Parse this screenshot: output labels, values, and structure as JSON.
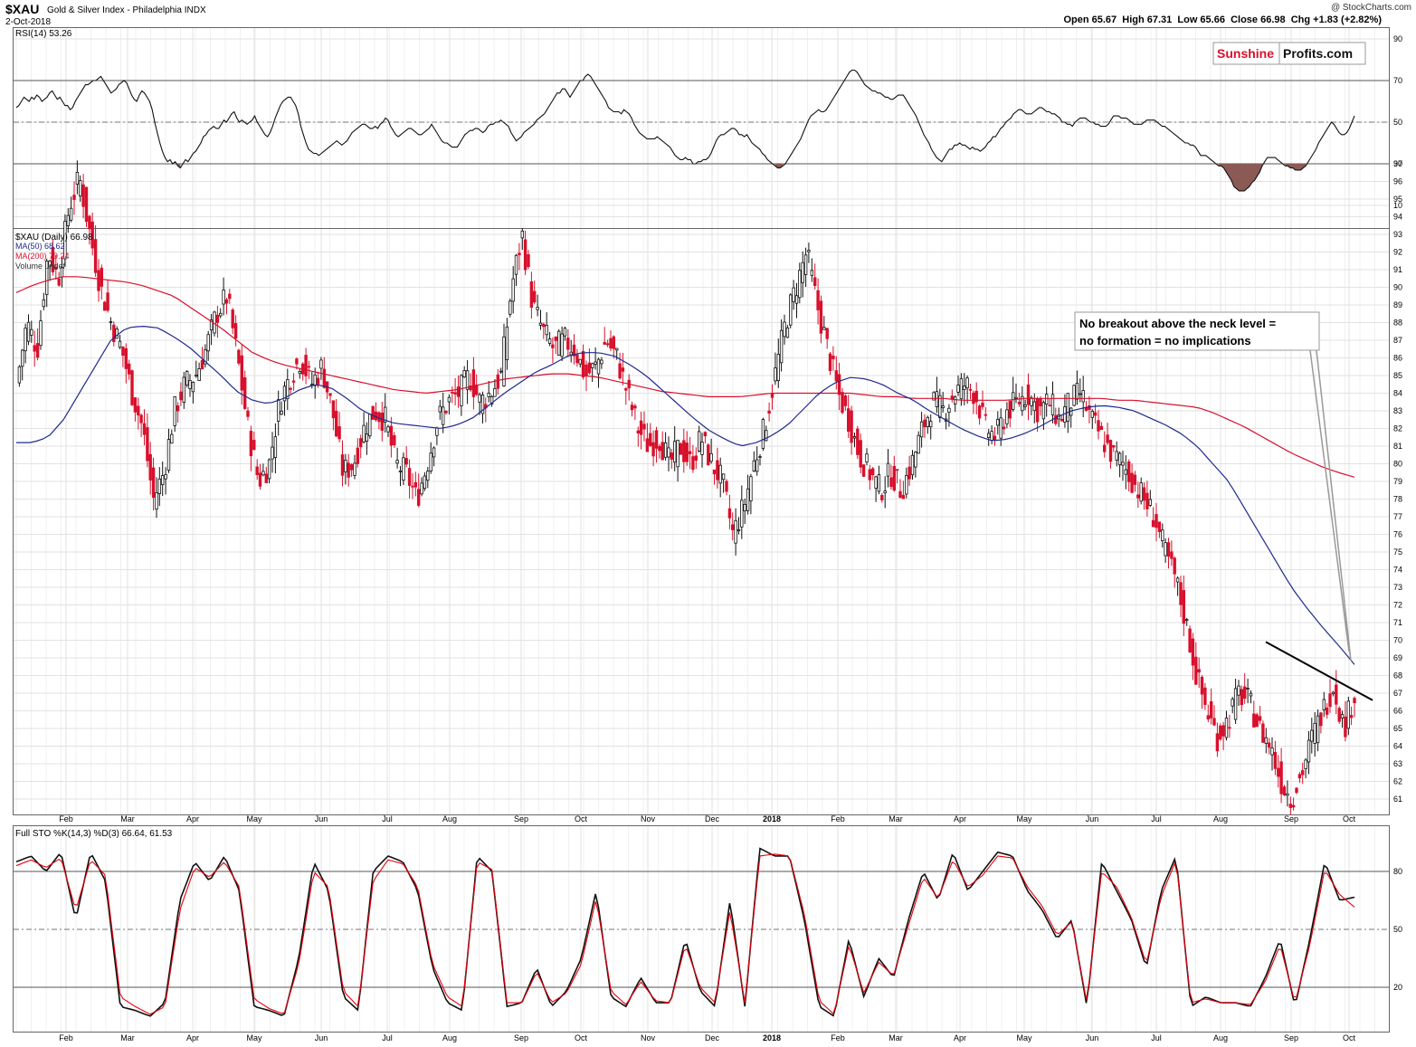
{
  "header": {
    "symbol": "$XAU",
    "name": "Gold & Silver Index - Philadelphia INDX",
    "date": "2-Oct-2018",
    "credit": "@ StockCharts.com",
    "ohlc": "Open 65.67  High 67.31  Low 65.66  Close 66.98  Chg +1.83 (+2.82%)"
  },
  "brand": {
    "part1": "Sunshine",
    "part2": "Profits.com",
    "color1": "#d8102c",
    "color2": "#111111"
  },
  "colors": {
    "up": "#111111",
    "down": "#d8102c",
    "ma50": "#1f2a8c",
    "ma200": "#d8102c",
    "grid": "#e2e2e2",
    "rsi_fill": "#8b5a55",
    "sto_d": "#e8000b"
  },
  "annotation": {
    "line1": "No breakout above the neck level =",
    "line2": "no formation = no implications"
  },
  "chart_data": [
    {
      "type": "line",
      "title": "RSI(14) 53.26",
      "ylim": [
        0,
        100
      ],
      "ticks": [
        10,
        30,
        50,
        70,
        90
      ],
      "reference_lines": [
        30,
        50,
        70
      ],
      "series": [
        {
          "name": "RSI(14)",
          "values": [
            57,
            58,
            60,
            62,
            61,
            60,
            62,
            61,
            63,
            62,
            60,
            61,
            62,
            64,
            65,
            63,
            61,
            62,
            60,
            58,
            58,
            56,
            57,
            60,
            62,
            64,
            66,
            68,
            68,
            69,
            70,
            70,
            71,
            72,
            70,
            68,
            66,
            64,
            65,
            66,
            68,
            69,
            70,
            69,
            66,
            63,
            61,
            60,
            63,
            65,
            64,
            62,
            60,
            56,
            50,
            45,
            40,
            36,
            33,
            31,
            32,
            30,
            31,
            29,
            28,
            30,
            32,
            31,
            33,
            35,
            36,
            38,
            40,
            43,
            44,
            46,
            47,
            48,
            47,
            47,
            49,
            51,
            50,
            52,
            54,
            55,
            52,
            50,
            51,
            50,
            49,
            50,
            51,
            53,
            50,
            48,
            46,
            44,
            43,
            45,
            48,
            52,
            55,
            58,
            60,
            61,
            62,
            62,
            60,
            58,
            54,
            48,
            44,
            40,
            37,
            36,
            35,
            35,
            34,
            35,
            36,
            37,
            38,
            39,
            40,
            41,
            40,
            39,
            40,
            41,
            43,
            45,
            46,
            47,
            48,
            49,
            49,
            48,
            47,
            47,
            48,
            47,
            49,
            50,
            52,
            51,
            48,
            46,
            44,
            43,
            44,
            45,
            46,
            47,
            47,
            46,
            45,
            44,
            44,
            45,
            46,
            47,
            49,
            47,
            45,
            43,
            41,
            40,
            40,
            39,
            38,
            38,
            38,
            40,
            42,
            44,
            45,
            46,
            46,
            47,
            47,
            46,
            45,
            46,
            48,
            49,
            49,
            50,
            50,
            51,
            50,
            49,
            48,
            45,
            43,
            41,
            42,
            43,
            45,
            46,
            47,
            48,
            49,
            51,
            52,
            53,
            54,
            56,
            58,
            60,
            62,
            64,
            64,
            66,
            66,
            64,
            62,
            64,
            66,
            68,
            70,
            70,
            72,
            73,
            72,
            70,
            68,
            66,
            64,
            62,
            60,
            57,
            56,
            55,
            55,
            55,
            54,
            56,
            55,
            54,
            52,
            49,
            47,
            45,
            44,
            43,
            42,
            42,
            42,
            42,
            43,
            42,
            41,
            40,
            39,
            38,
            36,
            34,
            33,
            32,
            32,
            33,
            32,
            32,
            30,
            30,
            31,
            31,
            32,
            32,
            33,
            35,
            38,
            41,
            43,
            44,
            44,
            45,
            46,
            47,
            47,
            46,
            44,
            44,
            43,
            44,
            42,
            40,
            39,
            38,
            37,
            35,
            34,
            32,
            31,
            30,
            29,
            28,
            28,
            29,
            30,
            32,
            34,
            36,
            38,
            40,
            42,
            45,
            48,
            51,
            53,
            54,
            55,
            56,
            55,
            55,
            56,
            58,
            60,
            62,
            64,
            66,
            68,
            70,
            72,
            74,
            75,
            75,
            74,
            72,
            70,
            68,
            67,
            66,
            65,
            65,
            64,
            64,
            63,
            62,
            62,
            61,
            61,
            62,
            63,
            63,
            63,
            61,
            59,
            57,
            55,
            53,
            50,
            47,
            44,
            42,
            40,
            37,
            35,
            33,
            32,
            31,
            33,
            35,
            37,
            37,
            39,
            39,
            40,
            39,
            39,
            38,
            37,
            38,
            37,
            37,
            36,
            37,
            38,
            40,
            41,
            43,
            43,
            45,
            47,
            48,
            50,
            51,
            52,
            54,
            55,
            56,
            56,
            55,
            54,
            54,
            54,
            55,
            56,
            57,
            57,
            56,
            55,
            55,
            54,
            54,
            53,
            52,
            50,
            50,
            49,
            49,
            48,
            50,
            51,
            52,
            52,
            52,
            51,
            50,
            50,
            49,
            49,
            48,
            48,
            48,
            49,
            51,
            53,
            53,
            53,
            52,
            52,
            52,
            51,
            50,
            49,
            49,
            49,
            49,
            50,
            51,
            51,
            51,
            51,
            50,
            49,
            48,
            48,
            47,
            46,
            45,
            44,
            43,
            42,
            41,
            40,
            40,
            39,
            39,
            38,
            36,
            34,
            34,
            34,
            33,
            32,
            31,
            30,
            29,
            29,
            28,
            26,
            24,
            22,
            19,
            18,
            17,
            17,
            17,
            18,
            19,
            21,
            22,
            24,
            26,
            29,
            31,
            33,
            33,
            33,
            33,
            32,
            31,
            30,
            29,
            29,
            28,
            28,
            27,
            27,
            27,
            28,
            29,
            31,
            33,
            35,
            37,
            40,
            42,
            44,
            46,
            48,
            50,
            49,
            47,
            45,
            44,
            44,
            45,
            47,
            50,
            53
          ]
        }
      ]
    },
    {
      "type": "line",
      "title": "$XAU (Daily) 66.98",
      "legend": [
        "$XAU (Daily) 66.98",
        "MA(50) 68.62",
        "MA(200) 79.24",
        "Volume undef"
      ],
      "xlabel": "",
      "ylabel": "",
      "ylim": [
        60,
        97
      ],
      "ticks": [
        61,
        62,
        63,
        64,
        65,
        66,
        67,
        68,
        69,
        70,
        71,
        72,
        73,
        74,
        75,
        76,
        77,
        78,
        79,
        80,
        81,
        82,
        83,
        84,
        85,
        86,
        87,
        88,
        89,
        90,
        91,
        92,
        93,
        94,
        95,
        96,
        97
      ],
      "x_labels": [
        "Feb",
        "Mar",
        "Apr",
        "May",
        "Jun",
        "Jul",
        "Aug",
        "Sep",
        "Oct",
        "Nov",
        "Dec",
        "2018",
        "Feb",
        "Mar",
        "Apr",
        "May",
        "Jun",
        "Jul",
        "Aug",
        "Sep",
        "Oct"
      ],
      "close_anchors": [
        84.5,
        88.0,
        86.5,
        92.0,
        90.5,
        94.5,
        96.2,
        93.0,
        90.0,
        88.0,
        86.5,
        84.0,
        82.0,
        78.0,
        79.5,
        83.0,
        84.5,
        85.0,
        86.5,
        88.5,
        89.5,
        86.0,
        82.0,
        79.0,
        80.0,
        83.5,
        85.0,
        86.0,
        84.5,
        85.5,
        83.0,
        79.5,
        80.0,
        82.0,
        83.0,
        82.5,
        80.0,
        79.5,
        78.0,
        80.0,
        82.5,
        83.5,
        84.0,
        85.0,
        83.5,
        84.0,
        85.0,
        90.0,
        93.0,
        89.0,
        87.5,
        86.5,
        87.0,
        86.5,
        85.0,
        85.5,
        87.0,
        86.0,
        84.0,
        82.0,
        81.0,
        81.5,
        80.0,
        81.0,
        80.0,
        81.5,
        80.0,
        79.0,
        76.0,
        77.5,
        80.0,
        82.0,
        85.0,
        88.0,
        90.0,
        92.0,
        89.0,
        86.5,
        84.0,
        82.5,
        80.5,
        79.5,
        78.5,
        79.5,
        78.5,
        80.0,
        82.0,
        83.5,
        83.0,
        84.0,
        84.5,
        84.0,
        82.0,
        81.5,
        83.0,
        83.5,
        84.0,
        83.0,
        83.5,
        82.5,
        83.5,
        84.0,
        82.5,
        81.5,
        80.5,
        80.0,
        79.0,
        78.0,
        77.0,
        75.0,
        73.5,
        71.0,
        68.0,
        66.0,
        64.5,
        65.5,
        67.0,
        66.5,
        65.0,
        64.0,
        62.0,
        61.0,
        62.5,
        64.5,
        66.0,
        67.5,
        65.0,
        66.98
      ],
      "series": [
        {
          "name": "MA(50) 68.62",
          "anchors": [
            81.2,
            81.2,
            81.5,
            82.5,
            84.0,
            85.5,
            87.0,
            87.7,
            87.8,
            87.7,
            87.2,
            86.6,
            85.8,
            85.0,
            84.1,
            83.6,
            83.4,
            83.7,
            84.2,
            84.5,
            84.3,
            83.7,
            83.0,
            82.6,
            82.3,
            82.2,
            82.1,
            82.0,
            82.2,
            82.6,
            83.3,
            84.0,
            84.6,
            85.2,
            85.6,
            86.1,
            86.3,
            86.3,
            86.1,
            85.6,
            85.0,
            84.2,
            83.4,
            82.6,
            81.9,
            81.4,
            81.0,
            81.2,
            81.6,
            82.2,
            83.1,
            84.0,
            84.6,
            84.9,
            84.8,
            84.5,
            84.0,
            83.6,
            83.0,
            82.5,
            82.0,
            81.6,
            81.3,
            81.4,
            81.7,
            82.1,
            82.6,
            83.0,
            83.2,
            83.3,
            83.2,
            83.0,
            82.6,
            82.2,
            81.7,
            81.0,
            80.0,
            79.0,
            77.5,
            76.0,
            74.5,
            73.0,
            71.8,
            70.7,
            69.7,
            68.62
          ]
        },
        {
          "name": "MA(200) 79.24",
          "anchors": [
            89.7,
            90.1,
            90.4,
            90.6,
            90.6,
            90.5,
            90.4,
            90.3,
            90.1,
            89.8,
            89.5,
            88.9,
            88.3,
            87.7,
            87.0,
            86.3,
            85.9,
            85.6,
            85.4,
            85.2,
            85.0,
            84.8,
            84.6,
            84.4,
            84.2,
            84.1,
            84.0,
            84.1,
            84.2,
            84.4,
            84.6,
            84.8,
            84.9,
            85.0,
            85.1,
            85.1,
            85.0,
            84.9,
            84.7,
            84.5,
            84.3,
            84.1,
            84.0,
            83.9,
            83.8,
            83.8,
            83.8,
            83.9,
            84.0,
            84.0,
            84.0,
            84.0,
            84.0,
            84.0,
            83.9,
            83.8,
            83.8,
            83.7,
            83.7,
            83.7,
            83.6,
            83.6,
            83.6,
            83.6,
            83.7,
            83.7,
            83.7,
            83.7,
            83.7,
            83.7,
            83.6,
            83.6,
            83.5,
            83.4,
            83.3,
            83.2,
            82.9,
            82.5,
            82.1,
            81.6,
            81.1,
            80.6,
            80.2,
            79.8,
            79.5,
            79.24
          ]
        }
      ],
      "trendline": {
        "x": [
          1399,
          1517
        ],
        "y": [
          69.9,
          66.6
        ]
      }
    },
    {
      "type": "line",
      "title": "Full STO %K(14,3) %D(3) 66.64, 61.53",
      "ylim": [
        0,
        100
      ],
      "ticks": [
        20,
        50,
        80
      ],
      "reference_lines": [
        20,
        50,
        80
      ],
      "series": [
        {
          "name": "%K(14,3) 66.64",
          "anchors": [
            85,
            88,
            80,
            90,
            55,
            90,
            75,
            10,
            8,
            5,
            12,
            65,
            85,
            75,
            88,
            70,
            10,
            8,
            5,
            35,
            85,
            70,
            15,
            8,
            80,
            88,
            85,
            70,
            30,
            12,
            8,
            88,
            80,
            10,
            12,
            30,
            10,
            18,
            35,
            70,
            15,
            10,
            25,
            12,
            12,
            45,
            18,
            10,
            65,
            10,
            92,
            88,
            88,
            55,
            10,
            5,
            45,
            15,
            35,
            25,
            55,
            80,
            65,
            90,
            70,
            80,
            90,
            88,
            70,
            60,
            45,
            55,
            10,
            85,
            70,
            55,
            30,
            70,
            88,
            10,
            15,
            12,
            12,
            10,
            25,
            45,
            10,
            45,
            85,
            65,
            66.64
          ]
        },
        {
          "name": "%D(3) 61.53",
          "anchors": [
            83,
            86,
            82,
            87,
            60,
            86,
            78,
            15,
            10,
            6,
            10,
            60,
            82,
            77,
            85,
            72,
            14,
            9,
            6,
            32,
            80,
            72,
            18,
            10,
            75,
            86,
            84,
            72,
            32,
            15,
            10,
            85,
            81,
            12,
            12,
            28,
            12,
            17,
            32,
            66,
            18,
            11,
            23,
            13,
            12,
            42,
            20,
            12,
            60,
            12,
            88,
            89,
            88,
            58,
            13,
            6,
            42,
            17,
            33,
            26,
            52,
            77,
            66,
            86,
            72,
            78,
            88,
            87,
            72,
            62,
            47,
            54,
            12,
            80,
            72,
            56,
            32,
            67,
            86,
            12,
            14,
            12,
            12,
            11,
            23,
            42,
            12,
            42,
            81,
            68,
            61.53
          ]
        }
      ]
    }
  ]
}
